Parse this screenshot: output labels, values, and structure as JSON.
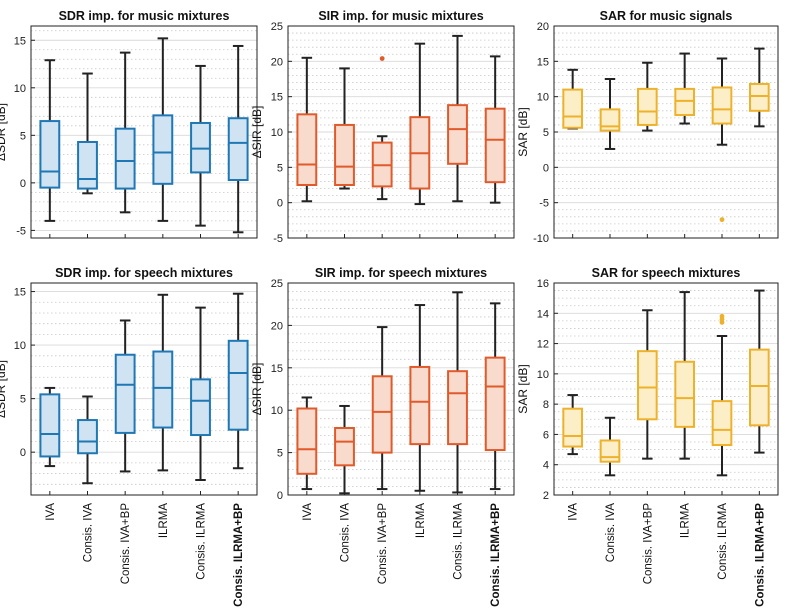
{
  "method_labels": [
    "IVA",
    "Consis. IVA",
    "Consis. IVA+BP",
    "ILRMA",
    "Consis. ILRMA",
    "Consis. ILRMA+BP"
  ],
  "colors": {
    "blue": "#1f77b4",
    "blue_fill": "#cfe3f2",
    "orange": "#e05a2b",
    "orange_fill": "#f9dbcd",
    "yellow": "#eeb12c",
    "yellow_fill": "#fcefc8",
    "whisker": "#222222",
    "grid": "#c8c8c8"
  },
  "chart_data": [
    {
      "id": "sdr-music",
      "type": "box",
      "title": "SDR imp. for music mixtures",
      "ylabel": "ΔSDR [dB]",
      "ylim": [
        -5.8,
        16.5
      ],
      "yticks": [
        -5,
        0,
        5,
        10,
        15
      ],
      "minor_step": 1,
      "color": "blue",
      "show_xlabels": false,
      "boxes": [
        {
          "min": -4,
          "q1": -0.5,
          "median": 1.2,
          "q3": 6.5,
          "max": 12.9,
          "outliers": []
        },
        {
          "min": -1.1,
          "q1": -0.6,
          "median": 0.4,
          "q3": 4.3,
          "max": 11.5,
          "outliers": []
        },
        {
          "min": -3.1,
          "q1": -0.6,
          "median": 2.3,
          "q3": 5.7,
          "max": 13.7,
          "outliers": []
        },
        {
          "min": -4,
          "q1": -0.1,
          "median": 3.2,
          "q3": 7.1,
          "max": 15.2,
          "outliers": []
        },
        {
          "min": -4.5,
          "q1": 1.1,
          "median": 3.6,
          "q3": 6.3,
          "max": 12.3,
          "outliers": []
        },
        {
          "min": -5.2,
          "q1": 0.3,
          "median": 4.2,
          "q3": 6.8,
          "max": 14.4,
          "outliers": []
        }
      ]
    },
    {
      "id": "sir-music",
      "type": "box",
      "title": "SIR imp. for music mixtures",
      "ylabel": "ΔSIR [dB]",
      "ylim": [
        -5,
        25
      ],
      "yticks": [
        -5,
        0,
        5,
        10,
        15,
        20,
        25
      ],
      "minor_step": 1,
      "color": "orange",
      "show_xlabels": false,
      "boxes": [
        {
          "min": 0.2,
          "q1": 2.5,
          "median": 5.4,
          "q3": 12.5,
          "max": 20.5,
          "outliers": []
        },
        {
          "min": 2,
          "q1": 2.5,
          "median": 5.1,
          "q3": 11,
          "max": 19,
          "outliers": []
        },
        {
          "min": 0.5,
          "q1": 2.3,
          "median": 5.3,
          "q3": 8.5,
          "max": 9.4,
          "outliers": [
            20.4
          ]
        },
        {
          "min": -0.2,
          "q1": 2,
          "median": 7,
          "q3": 12.1,
          "max": 22.5,
          "outliers": []
        },
        {
          "min": 0.2,
          "q1": 5.5,
          "median": 10.4,
          "q3": 13.8,
          "max": 23.6,
          "outliers": []
        },
        {
          "min": 0,
          "q1": 2.9,
          "median": 8.9,
          "q3": 13.3,
          "max": 20.7,
          "outliers": []
        }
      ]
    },
    {
      "id": "sar-music",
      "type": "box",
      "title": "SAR for music signals",
      "ylabel": "SAR [dB]",
      "ylim": [
        -10,
        20
      ],
      "yticks": [
        -10,
        -5,
        0,
        5,
        10,
        15,
        20
      ],
      "minor_step": 1,
      "color": "yellow",
      "show_xlabels": false,
      "boxes": [
        {
          "min": 5.5,
          "q1": 5.6,
          "median": 7.2,
          "q3": 11,
          "max": 13.8,
          "outliers": []
        },
        {
          "min": 2.6,
          "q1": 5.2,
          "median": 5.8,
          "q3": 8.2,
          "max": 12.5,
          "outliers": []
        },
        {
          "min": 5.2,
          "q1": 6,
          "median": 7.9,
          "q3": 11.1,
          "max": 14.8,
          "outliers": []
        },
        {
          "min": 6.2,
          "q1": 7.4,
          "median": 9.4,
          "q3": 11.1,
          "max": 16.1,
          "outliers": []
        },
        {
          "min": 3.2,
          "q1": 6.2,
          "median": 8.2,
          "q3": 11.3,
          "max": 15.4,
          "outliers": [
            -7.4
          ]
        },
        {
          "min": 5.8,
          "q1": 8,
          "median": 10.1,
          "q3": 11.8,
          "max": 16.8,
          "outliers": []
        }
      ]
    },
    {
      "id": "sdr-speech",
      "type": "box",
      "title": "SDR imp. for speech mixtures",
      "ylabel": "ΔSDR [dB]",
      "ylim": [
        -4,
        15.8
      ],
      "yticks": [
        0,
        5,
        10,
        15
      ],
      "minor_step": 1,
      "color": "blue",
      "show_xlabels": true,
      "boxes": [
        {
          "min": -1.3,
          "q1": -0.4,
          "median": 1.7,
          "q3": 5.4,
          "max": 6,
          "outliers": []
        },
        {
          "min": -2.9,
          "q1": -0.1,
          "median": 1,
          "q3": 3,
          "max": 5.2,
          "outliers": []
        },
        {
          "min": -1.8,
          "q1": 1.8,
          "median": 6.3,
          "q3": 9.1,
          "max": 12.3,
          "outliers": []
        },
        {
          "min": -1.7,
          "q1": 2.3,
          "median": 6,
          "q3": 9.4,
          "max": 14.7,
          "outliers": []
        },
        {
          "min": -2.6,
          "q1": 1.6,
          "median": 4.8,
          "q3": 6.8,
          "max": 13.5,
          "outliers": []
        },
        {
          "min": -1.5,
          "q1": 2.1,
          "median": 7.4,
          "q3": 10.4,
          "max": 14.8,
          "outliers": []
        }
      ]
    },
    {
      "id": "sir-speech",
      "type": "box",
      "title": "SIR imp. for speech mixtures",
      "ylabel": "ΔSIR [dB]",
      "ylim": [
        0,
        25
      ],
      "yticks": [
        0,
        5,
        10,
        15,
        20,
        25
      ],
      "minor_step": 1,
      "color": "orange",
      "show_xlabels": true,
      "boxes": [
        {
          "min": 0.7,
          "q1": 2.5,
          "median": 5.4,
          "q3": 10.2,
          "max": 11.5,
          "outliers": []
        },
        {
          "min": 0.2,
          "q1": 3.5,
          "median": 6.3,
          "q3": 7.9,
          "max": 10.5,
          "outliers": []
        },
        {
          "min": 0.7,
          "q1": 5,
          "median": 9.8,
          "q3": 14,
          "max": 19.8,
          "outliers": []
        },
        {
          "min": 0.5,
          "q1": 6,
          "median": 11,
          "q3": 15.1,
          "max": 22.4,
          "outliers": []
        },
        {
          "min": 0.3,
          "q1": 6,
          "median": 12,
          "q3": 14.6,
          "max": 23.9,
          "outliers": []
        },
        {
          "min": 0.7,
          "q1": 5.3,
          "median": 12.8,
          "q3": 16.2,
          "max": 22.6,
          "outliers": []
        }
      ]
    },
    {
      "id": "sar-speech",
      "type": "box",
      "title": "SAR for speech mixtures",
      "ylabel": "SAR [dB]",
      "ylim": [
        2,
        16
      ],
      "yticks": [
        2,
        4,
        6,
        8,
        10,
        12,
        14,
        16
      ],
      "minor_step": 0.5,
      "color": "yellow",
      "show_xlabels": true,
      "boxes": [
        {
          "min": 4.7,
          "q1": 5.2,
          "median": 5.9,
          "q3": 7.7,
          "max": 8.6,
          "outliers": []
        },
        {
          "min": 3.3,
          "q1": 4.2,
          "median": 4.5,
          "q3": 5.6,
          "max": 7.1,
          "outliers": []
        },
        {
          "min": 4.4,
          "q1": 7,
          "median": 9.1,
          "q3": 11.5,
          "max": 14.2,
          "outliers": []
        },
        {
          "min": 4.4,
          "q1": 6.5,
          "median": 8.4,
          "q3": 10.8,
          "max": 15.4,
          "outliers": []
        },
        {
          "min": 3.3,
          "q1": 5.3,
          "median": 6.3,
          "q3": 8.2,
          "max": 12.5,
          "outliers": [
            13.4,
            13.6,
            13.8
          ]
        },
        {
          "min": 4.8,
          "q1": 6.6,
          "median": 9.2,
          "q3": 11.6,
          "max": 15.5,
          "outliers": []
        }
      ]
    }
  ]
}
